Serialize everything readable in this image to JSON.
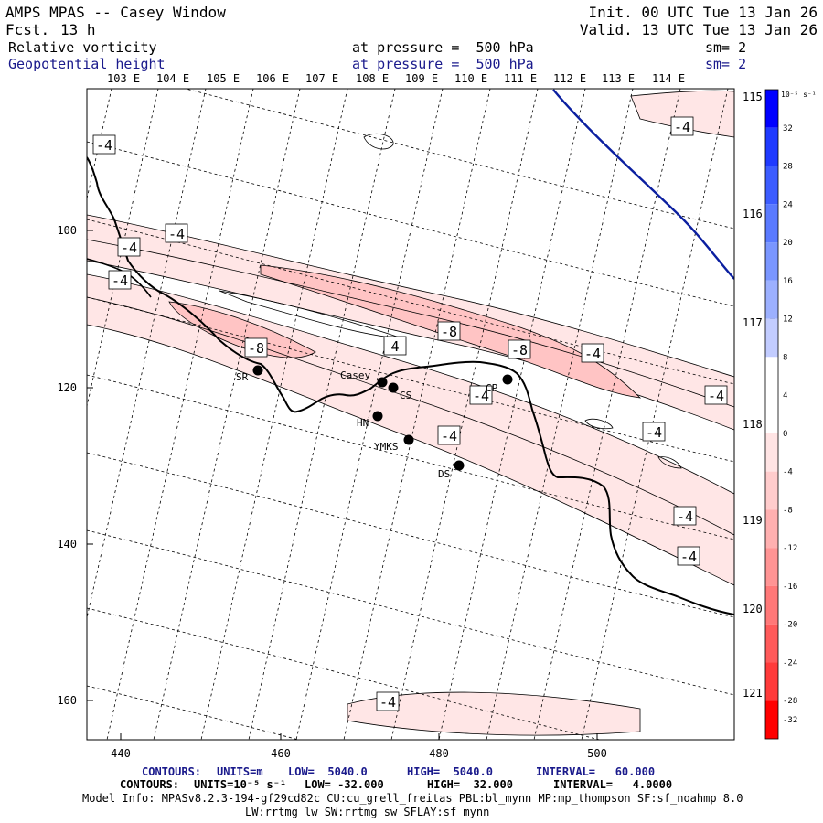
{
  "header": {
    "title": "AMPS MPAS -- Casey Window",
    "fcst_label": "Fcst.",
    "fcst_value": "13 h",
    "init": "Init. 00 UTC Tue 13 Jan 26",
    "valid": "Valid. 13 UTC Tue 13 Jan 26",
    "field1": {
      "name": "Relative vorticity",
      "level": "at pressure =  500 hPa",
      "sm": "sm= 2"
    },
    "field2": {
      "name": "Geopotential height",
      "level": "at pressure =  500 hPa",
      "sm": "sm= 2"
    }
  },
  "top_lon_labels": [
    "103 E",
    "104 E",
    "105 E",
    "106 E",
    "107 E",
    "108 E",
    "109 E",
    "110 E",
    "111 E",
    "112 E",
    "113 E",
    "114 E"
  ],
  "right_lon_labels": [
    "115 E",
    "116 E",
    "117 E",
    "118 E",
    "119 E",
    "120 E",
    "121 E"
  ],
  "x_ticks": [
    "440",
    "460",
    "480",
    "500"
  ],
  "y_ticks": [
    "100",
    "120",
    "140",
    "160"
  ],
  "contour_labels": [
    "-4",
    "-4",
    "-4",
    "-4",
    "-4",
    "-8",
    "-8",
    "-8",
    "4",
    "-4",
    "-4",
    "-4",
    "-4",
    "-4",
    "-4",
    "-4",
    "-4"
  ],
  "stations": [
    {
      "id": "SR",
      "label": "SR"
    },
    {
      "id": "Casey",
      "label": "Casey"
    },
    {
      "id": "CS",
      "label": "CS"
    },
    {
      "id": "HN",
      "label": "HN"
    },
    {
      "id": "YMKS",
      "label": "YMKS"
    },
    {
      "id": "DS",
      "label": "DS"
    },
    {
      "id": "CP",
      "label": "CP"
    }
  ],
  "colorbar": {
    "unit": "10⁻⁵ s⁻¹",
    "ticks": [
      "32",
      "28",
      "24",
      "20",
      "16",
      "12",
      "8",
      "4",
      "0",
      "-4",
      "-8",
      "-12",
      "-16",
      "-20",
      "-24",
      "-28",
      "-32"
    ],
    "colors": [
      "#0000ff",
      "#1f3aff",
      "#3c5cff",
      "#5a7aff",
      "#7a96ff",
      "#9cb0ff",
      "#c2ccff",
      "#ffffff",
      "#ffffff",
      "#ffe4e4",
      "#ffcccc",
      "#ffb0b0",
      "#ff9494",
      "#ff7878",
      "#ff5a5a",
      "#ff3a3a",
      "#ff0000"
    ]
  },
  "footer": {
    "line1": {
      "contours": "CONTOURS:",
      "units": "UNITS=m",
      "low": "LOW=  5040.0",
      "high": "HIGH=  5040.0",
      "interval": "INTERVAL=   60.000"
    },
    "line2": {
      "contours": "CONTOURS:",
      "units": "UNITS=10⁻⁵ s⁻¹",
      "low": "LOW= -32.000",
      "high": "HIGH=  32.000",
      "interval": "INTERVAL=   4.0000"
    },
    "model_info": "Model Info: MPASv8.2.3-194-gf29cd82c CU:cu_grell_freitas PBL:bl_mynn MP:mp_thompson SF:sf_noahmp 8.0",
    "model_info2": "LW:rrtmg_lw SW:rrtmg_sw SFLAY:sf_mynn"
  }
}
